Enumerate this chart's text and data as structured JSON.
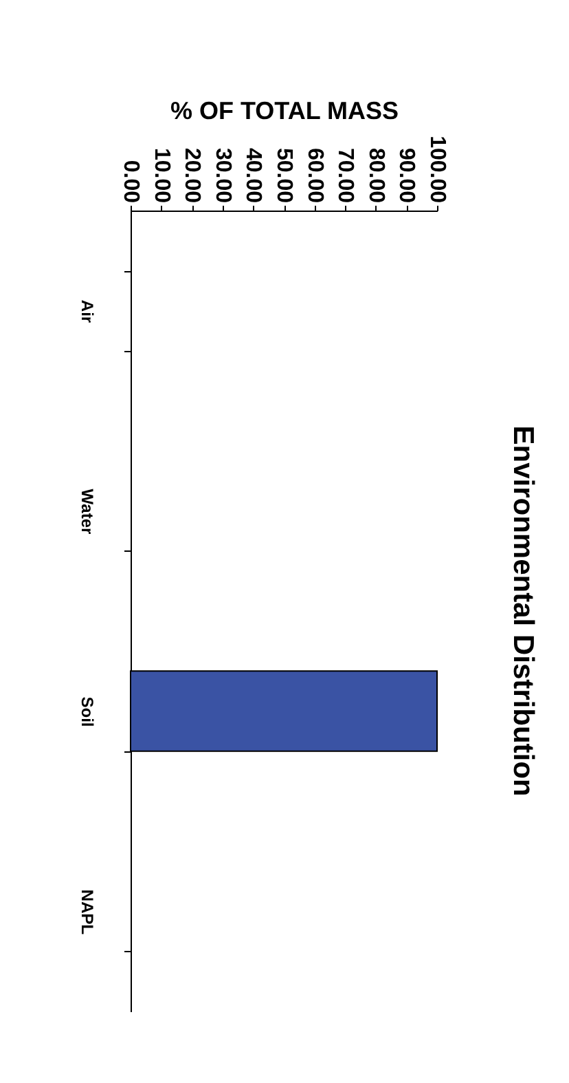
{
  "chart_data": {
    "type": "bar",
    "orientation": "horizontal",
    "title": "Environmental Distribution",
    "xlabel": "% OF TOTAL MASS",
    "categories": [
      "Air",
      "Water",
      "Soil",
      "NAPL"
    ],
    "values": [
      0,
      0,
      100,
      0
    ],
    "color": "#3a53a4",
    "xlim": [
      0,
      100
    ],
    "xticks": [
      {
        "value": 0,
        "label": "0.00"
      },
      {
        "value": 10,
        "label": "10.00"
      },
      {
        "value": 20,
        "label": "20.00"
      },
      {
        "value": 30,
        "label": "30.00"
      },
      {
        "value": 40,
        "label": "40.00"
      },
      {
        "value": 50,
        "label": "50.00"
      },
      {
        "value": 60,
        "label": "60.00"
      },
      {
        "value": 70,
        "label": "70.00"
      },
      {
        "value": 80,
        "label": "80.00"
      },
      {
        "value": 90,
        "label": "90.00"
      },
      {
        "value": 100,
        "label": "100.00"
      }
    ],
    "legend": false
  }
}
